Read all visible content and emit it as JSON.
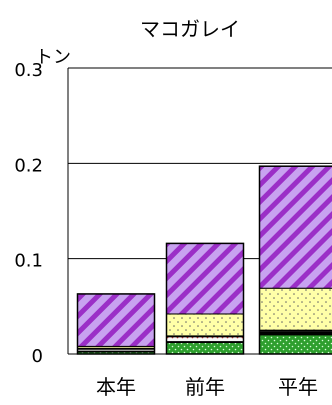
{
  "chart_data": {
    "type": "bar",
    "stacked": true,
    "title": "マコガレイ",
    "ylabel": "トン",
    "categories": [
      "本年",
      "前年",
      "平年"
    ],
    "ylim": [
      0,
      0.3
    ],
    "yticks": [
      {
        "value": 0,
        "label": "0"
      },
      {
        "value": 0.1,
        "label": "0.1"
      },
      {
        "value": 0.2,
        "label": "0.2"
      },
      {
        "value": 0.3,
        "label": "0.3"
      }
    ],
    "grid": true,
    "series": [
      {
        "fill": "#2e9f2e",
        "pattern": "green-dots",
        "values": [
          0.002,
          0.012,
          0.02
        ]
      },
      {
        "fill": "#000000",
        "pattern": "black",
        "values": [
          0.001,
          0.001,
          0.004
        ]
      },
      {
        "fill": "#f8f8f8",
        "pattern": "red-dots",
        "values": [
          0.002,
          0.005,
          0.0
        ]
      },
      {
        "fill": "#000000",
        "pattern": "black",
        "values": [
          0.001,
          0.001,
          0.001
        ]
      },
      {
        "fill": "#ffffa8",
        "pattern": "light-yellow-dots",
        "values": [
          0.002,
          0.023,
          0.044
        ]
      },
      {
        "fill": "#c8a2f0",
        "pattern": "purple-diagonal",
        "values": [
          0.055,
          0.074,
          0.128
        ]
      }
    ]
  }
}
